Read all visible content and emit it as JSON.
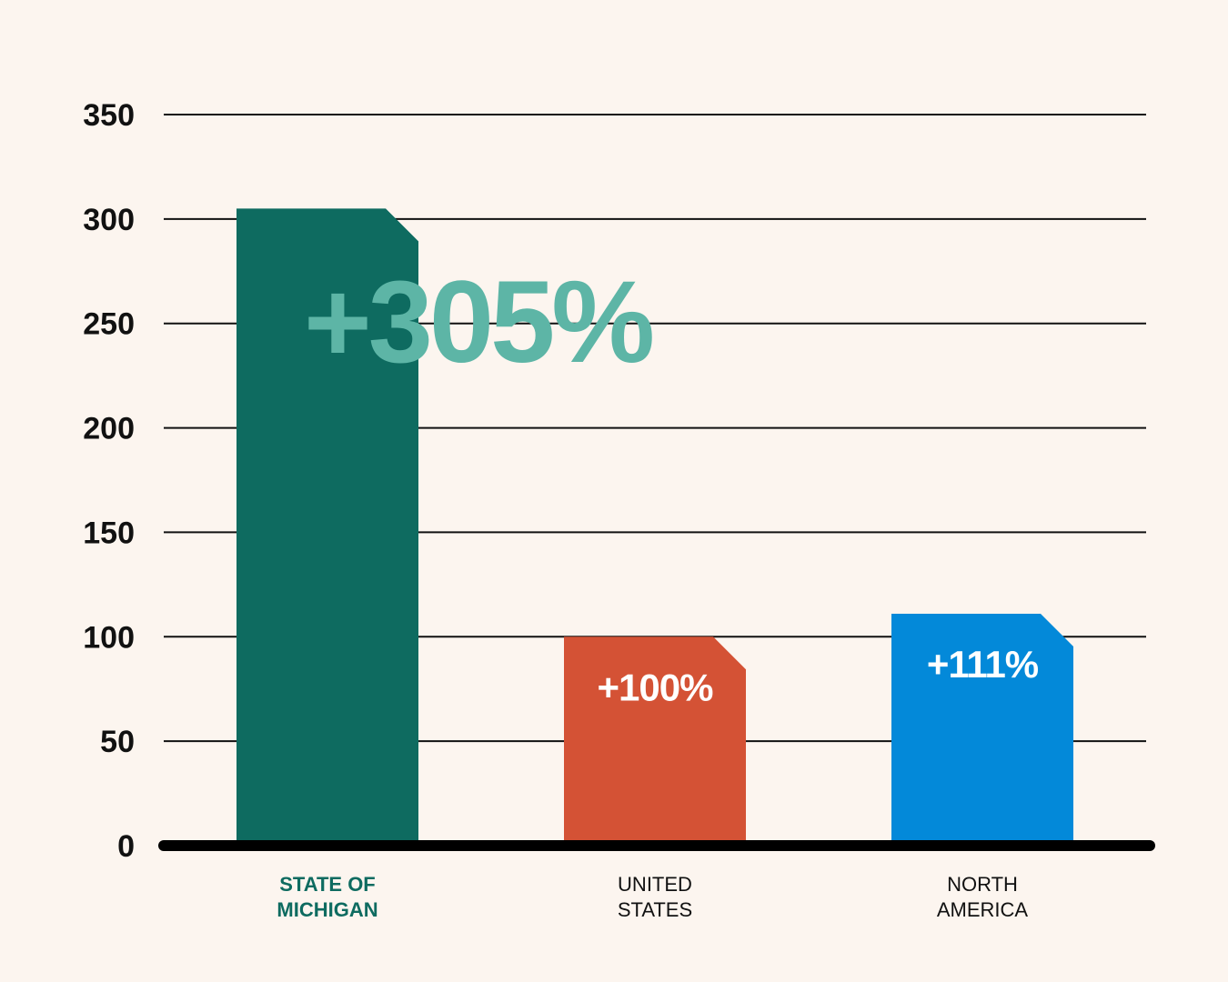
{
  "chart_data": {
    "type": "bar",
    "categories": [
      [
        "STATE OF",
        "MICHIGAN"
      ],
      [
        "UNITED",
        "STATES"
      ],
      [
        "NORTH",
        "AMERICA"
      ]
    ],
    "values": [
      305,
      100,
      111
    ],
    "data_labels": [
      "+305%",
      "+100%",
      "+111%"
    ],
    "colors": [
      "#0e6b60",
      "#d45235",
      "#0389d9"
    ],
    "data_label_colors": [
      "#5db5a6",
      "#ffffff",
      "#ffffff"
    ],
    "category_label_colors": [
      "#0e6b60",
      "#111111",
      "#111111"
    ],
    "category_label_bold": [
      true,
      false,
      false
    ],
    "yticks": [
      0,
      50,
      100,
      150,
      200,
      250,
      300,
      350
    ],
    "ylim": [
      0,
      350
    ],
    "grid": true,
    "legend": "none"
  }
}
